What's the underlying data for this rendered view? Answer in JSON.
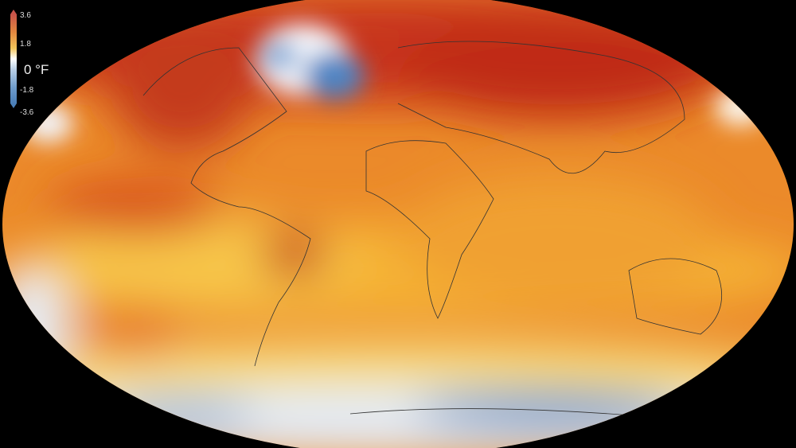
{
  "legend": {
    "unit": "0 °F",
    "ticks": [
      "3.6",
      "1.8",
      "-1.8",
      "-3.6"
    ],
    "colors": {
      "max": "#c9544a",
      "warm": "#e2873f",
      "mid": "#ffffff",
      "cool": "#6f9ccb",
      "min": "#4b7fb8"
    }
  },
  "map": {
    "projection": "elliptical world map",
    "background": "#000000",
    "anomaly_colors": {
      "strong_warm": "#c0301c",
      "warm": "#e8701e",
      "mild": "#f7c040",
      "neutral": "#fdf7d8",
      "cool": "#dfe8f5",
      "strong_cool": "#4d82c0"
    }
  }
}
